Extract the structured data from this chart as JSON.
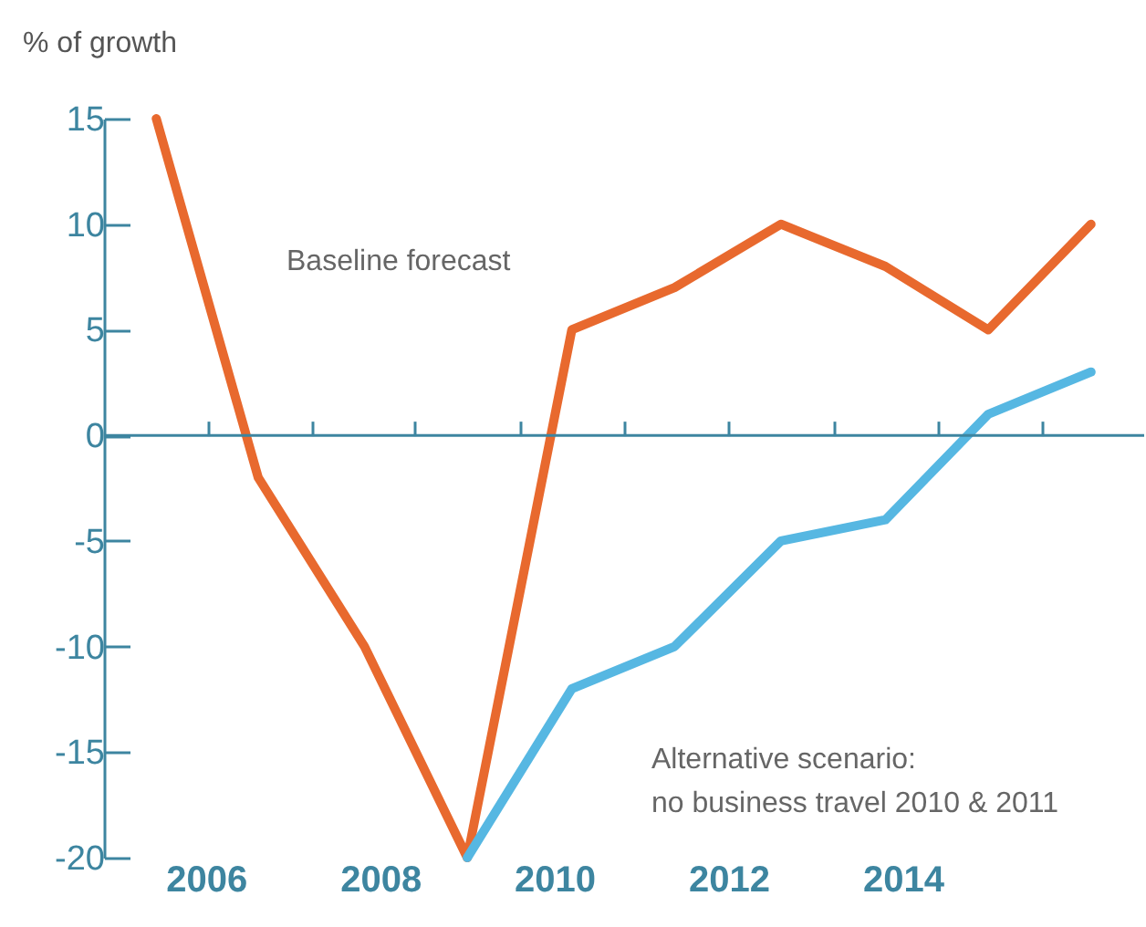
{
  "chart_data": {
    "type": "line",
    "ylabel": "% of growth",
    "x": [
      2005.43,
      2006.6,
      2007.82,
      2009.0,
      2010.2,
      2011.38,
      2012.6,
      2013.8,
      2014.98,
      2016.16
    ],
    "xlim": [
      2004.83,
      2016.77
    ],
    "xticks": [
      {
        "value": 2006.02,
        "label": null
      },
      2006,
      {
        "value": 2007.21,
        "label": null
      },
      2008,
      {
        "value": 2008.4,
        "label": null
      },
      {
        "value": 2009.6,
        "label": null
      },
      2010,
      {
        "value": 2010.8,
        "label": null
      },
      {
        "value": 2011.99,
        "label": null
      },
      2012,
      {
        "value": 2013.2,
        "label": null
      },
      2014,
      {
        "value": 2014.4,
        "label": null
      },
      {
        "value": 2015.6,
        "label": null
      }
    ],
    "ref_lines": [
      {
        "axis": "y",
        "value": 0
      }
    ],
    "ylim": [
      -20,
      15
    ],
    "yticks": [
      -20,
      -15,
      -10,
      -5,
      0,
      5,
      10,
      15
    ],
    "series": [
      {
        "name": "Baseline forecast",
        "color": "#e8692e",
        "values": [
          15,
          -2,
          -10,
          -20,
          5,
          7,
          10,
          8,
          5,
          10
        ]
      },
      {
        "name": "Alternative scenario:\nno business travel 2010 & 2011",
        "color": "#56b7e2",
        "values": [
          null,
          null,
          null,
          -20,
          -12,
          -10,
          -5,
          -4,
          1,
          3
        ]
      }
    ],
    "grid": false
  }
}
